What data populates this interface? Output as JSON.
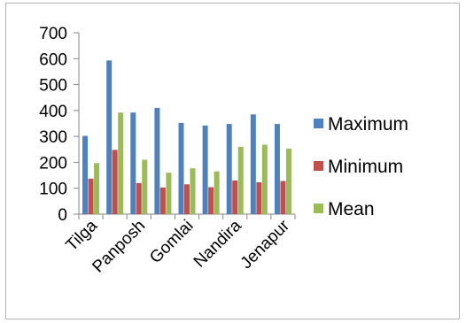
{
  "chart_data": {
    "type": "bar",
    "title": "",
    "xlabel": "",
    "ylabel": "",
    "ylim": [
      0,
      700
    ],
    "yticks": [
      "0",
      "100",
      "200",
      "300",
      "400",
      "500",
      "600",
      "700"
    ],
    "categories": [
      "Tilga",
      "",
      "Panposh",
      "",
      "Gomlai",
      "",
      "Nandira",
      "",
      "Jenapur"
    ],
    "series": [
      {
        "name": "Maximum",
        "color": "#4f81bd",
        "values": [
          302,
          593,
          392,
          410,
          352,
          342,
          348,
          385,
          348
        ]
      },
      {
        "name": "Minimum",
        "color": "#c0504d",
        "values": [
          137,
          248,
          120,
          103,
          115,
          104,
          130,
          123,
          128
        ]
      },
      {
        "name": "Mean",
        "color": "#9bbb59",
        "values": [
          197,
          392,
          210,
          160,
          177,
          165,
          260,
          268,
          253
        ]
      }
    ],
    "grid": false,
    "legend_position": "right"
  }
}
